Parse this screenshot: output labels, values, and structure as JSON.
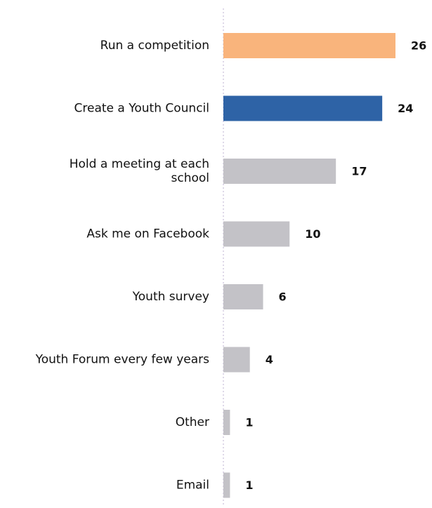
{
  "chart_data": {
    "type": "bar",
    "orientation": "horizontal",
    "title": "",
    "xlabel": "",
    "ylabel": "",
    "categories": [
      "Run a competition",
      "Create a Youth Council",
      "Hold a meeting at each school",
      "Ask me on Facebook",
      "Youth survey",
      "Youth Forum every few years",
      "Other",
      "Email"
    ],
    "category_lines": [
      [
        "Run a competition"
      ],
      [
        "Create a Youth Council"
      ],
      [
        "Hold a meeting at each",
        "school"
      ],
      [
        "Ask me on Facebook"
      ],
      [
        "Youth survey"
      ],
      [
        "Youth Forum every few years"
      ],
      [
        "Other"
      ],
      [
        "Email"
      ]
    ],
    "values": [
      26,
      24,
      17,
      10,
      6,
      4,
      1,
      1
    ],
    "value_labels": [
      "26",
      "24",
      "17",
      "10",
      "6",
      "4",
      "1",
      "1"
    ],
    "colors": [
      "#F9B47C",
      "#2E63A6",
      "#C3C2C7",
      "#C3C2C7",
      "#C3C2C7",
      "#C3C2C7",
      "#C3C2C7",
      "#C3C2C7"
    ],
    "axis_color": "#C9BDD8",
    "xlim": [
      0,
      26
    ],
    "grid": false,
    "legend": "none"
  }
}
